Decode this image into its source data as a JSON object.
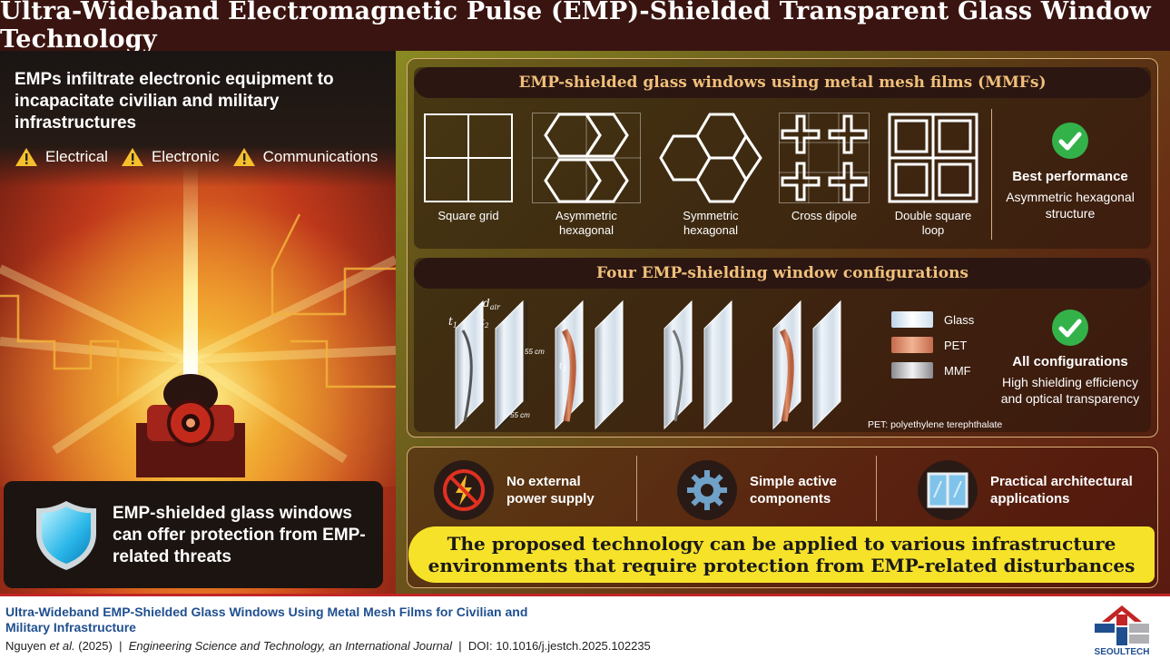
{
  "header": {
    "title": "Ultra-Wideband Electromagnetic Pulse (EMP)-Shielded Transparent Glass Window Technology"
  },
  "left": {
    "intro": "EMPs infiltrate electronic equipment to incapacitate civilian and military infrastructures",
    "threats": [
      "Electrical",
      "Electronic",
      "Communications"
    ],
    "protect_text": "EMP-shielded glass windows can offer protection from EMP-related threats"
  },
  "mmf": {
    "heading": "EMP-shielded glass windows using metal mesh films (MMFs)",
    "patterns": [
      {
        "label": "Square grid"
      },
      {
        "label": "Asymmetric hexagonal"
      },
      {
        "label": "Symmetric hexagonal"
      },
      {
        "label": "Cross dipole"
      },
      {
        "label": "Double square loop"
      }
    ],
    "best_title": "Best performance",
    "best_desc": "Asymmetric hexagonal structure"
  },
  "config": {
    "heading": "Four EMP-shielding window configurations",
    "dim_labels": {
      "t1": "t",
      "t1_sub": "1",
      "dair": "d",
      "dair_sub": "air",
      "t2": "t",
      "t2_sub": "2",
      "height": "55 cm",
      "width": "55 cm",
      "t3": "t",
      "t3_sub": "3"
    },
    "legend": [
      {
        "label": "Glass",
        "color": "#dfeaf3"
      },
      {
        "label": "PET",
        "color": "#d98a6a"
      },
      {
        "label": "MMF",
        "color": "#b9b9bd"
      }
    ],
    "pet_note": "PET: polyethylene terephthalate",
    "all_title": "All configurations",
    "all_desc": "High shielding efficiency and optical transparency"
  },
  "features": [
    {
      "label": "No external power supply",
      "icon": "no-power-icon"
    },
    {
      "label": "Simple active components",
      "icon": "gear-icon"
    },
    {
      "label": "Practical architectural applications",
      "icon": "window-icon"
    }
  ],
  "banner": "The proposed technology can be applied to various infrastructure environments that require protection from EMP-related disturbances",
  "footer": {
    "paper_title": "Ultra-Wideband EMP-Shielded Glass Windows Using Metal Mesh Films for Civilian and Military Infrastructure",
    "authors": "Nguyen",
    "etal": "et al.",
    "year": "(2025)",
    "sep1": "|",
    "journal": "Engineering Science and Technology, an International Journal",
    "sep2": "|",
    "doi": "DOI: 10.1016/j.jestch.2025.102235",
    "logo_text": "SEOULTECH"
  },
  "colors": {
    "accent": "#f0c07a",
    "banner": "#f7e22a",
    "header": "#3a1410",
    "link": "#1f4f8f",
    "check": "#34b24a"
  }
}
